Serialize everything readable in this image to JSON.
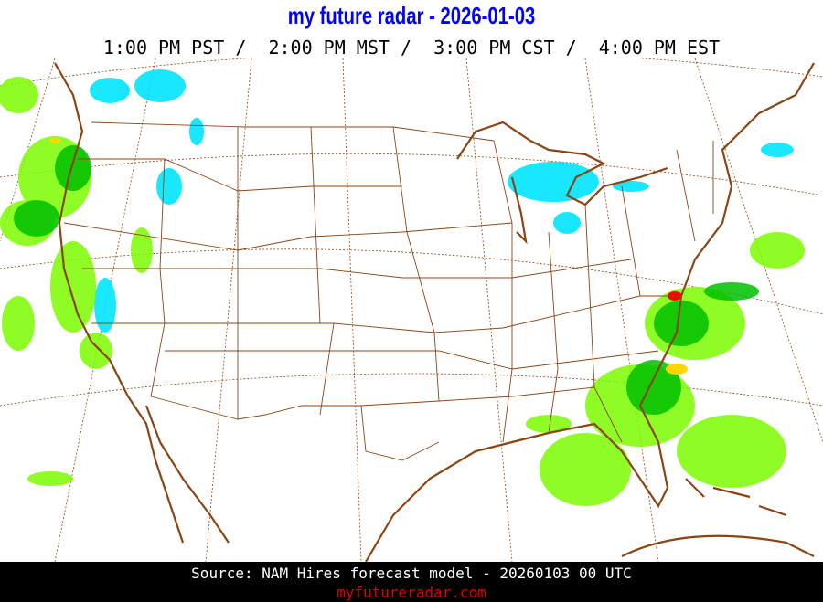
{
  "header": {
    "title": "my future radar - 2026-01-03",
    "times": "1:00 PM PST /  2:00 PM MST /  3:00 PM CST /  4:00 PM EST"
  },
  "map": {
    "region": "Continental United States",
    "colors": {
      "coastline": "#8b4513",
      "borders": "#8b4513",
      "rain_light": "#7cfc00",
      "rain_moderate": "#00c000",
      "rain_heavy": "#ffd700",
      "rain_intense": "#ff0000",
      "snow": "#00e5ff",
      "snow_light": "#40a0ff"
    }
  },
  "footer": {
    "source": "Source: NAM Hires forecast model - 20260103 00 UTC",
    "site": "myfutureradar.com"
  }
}
